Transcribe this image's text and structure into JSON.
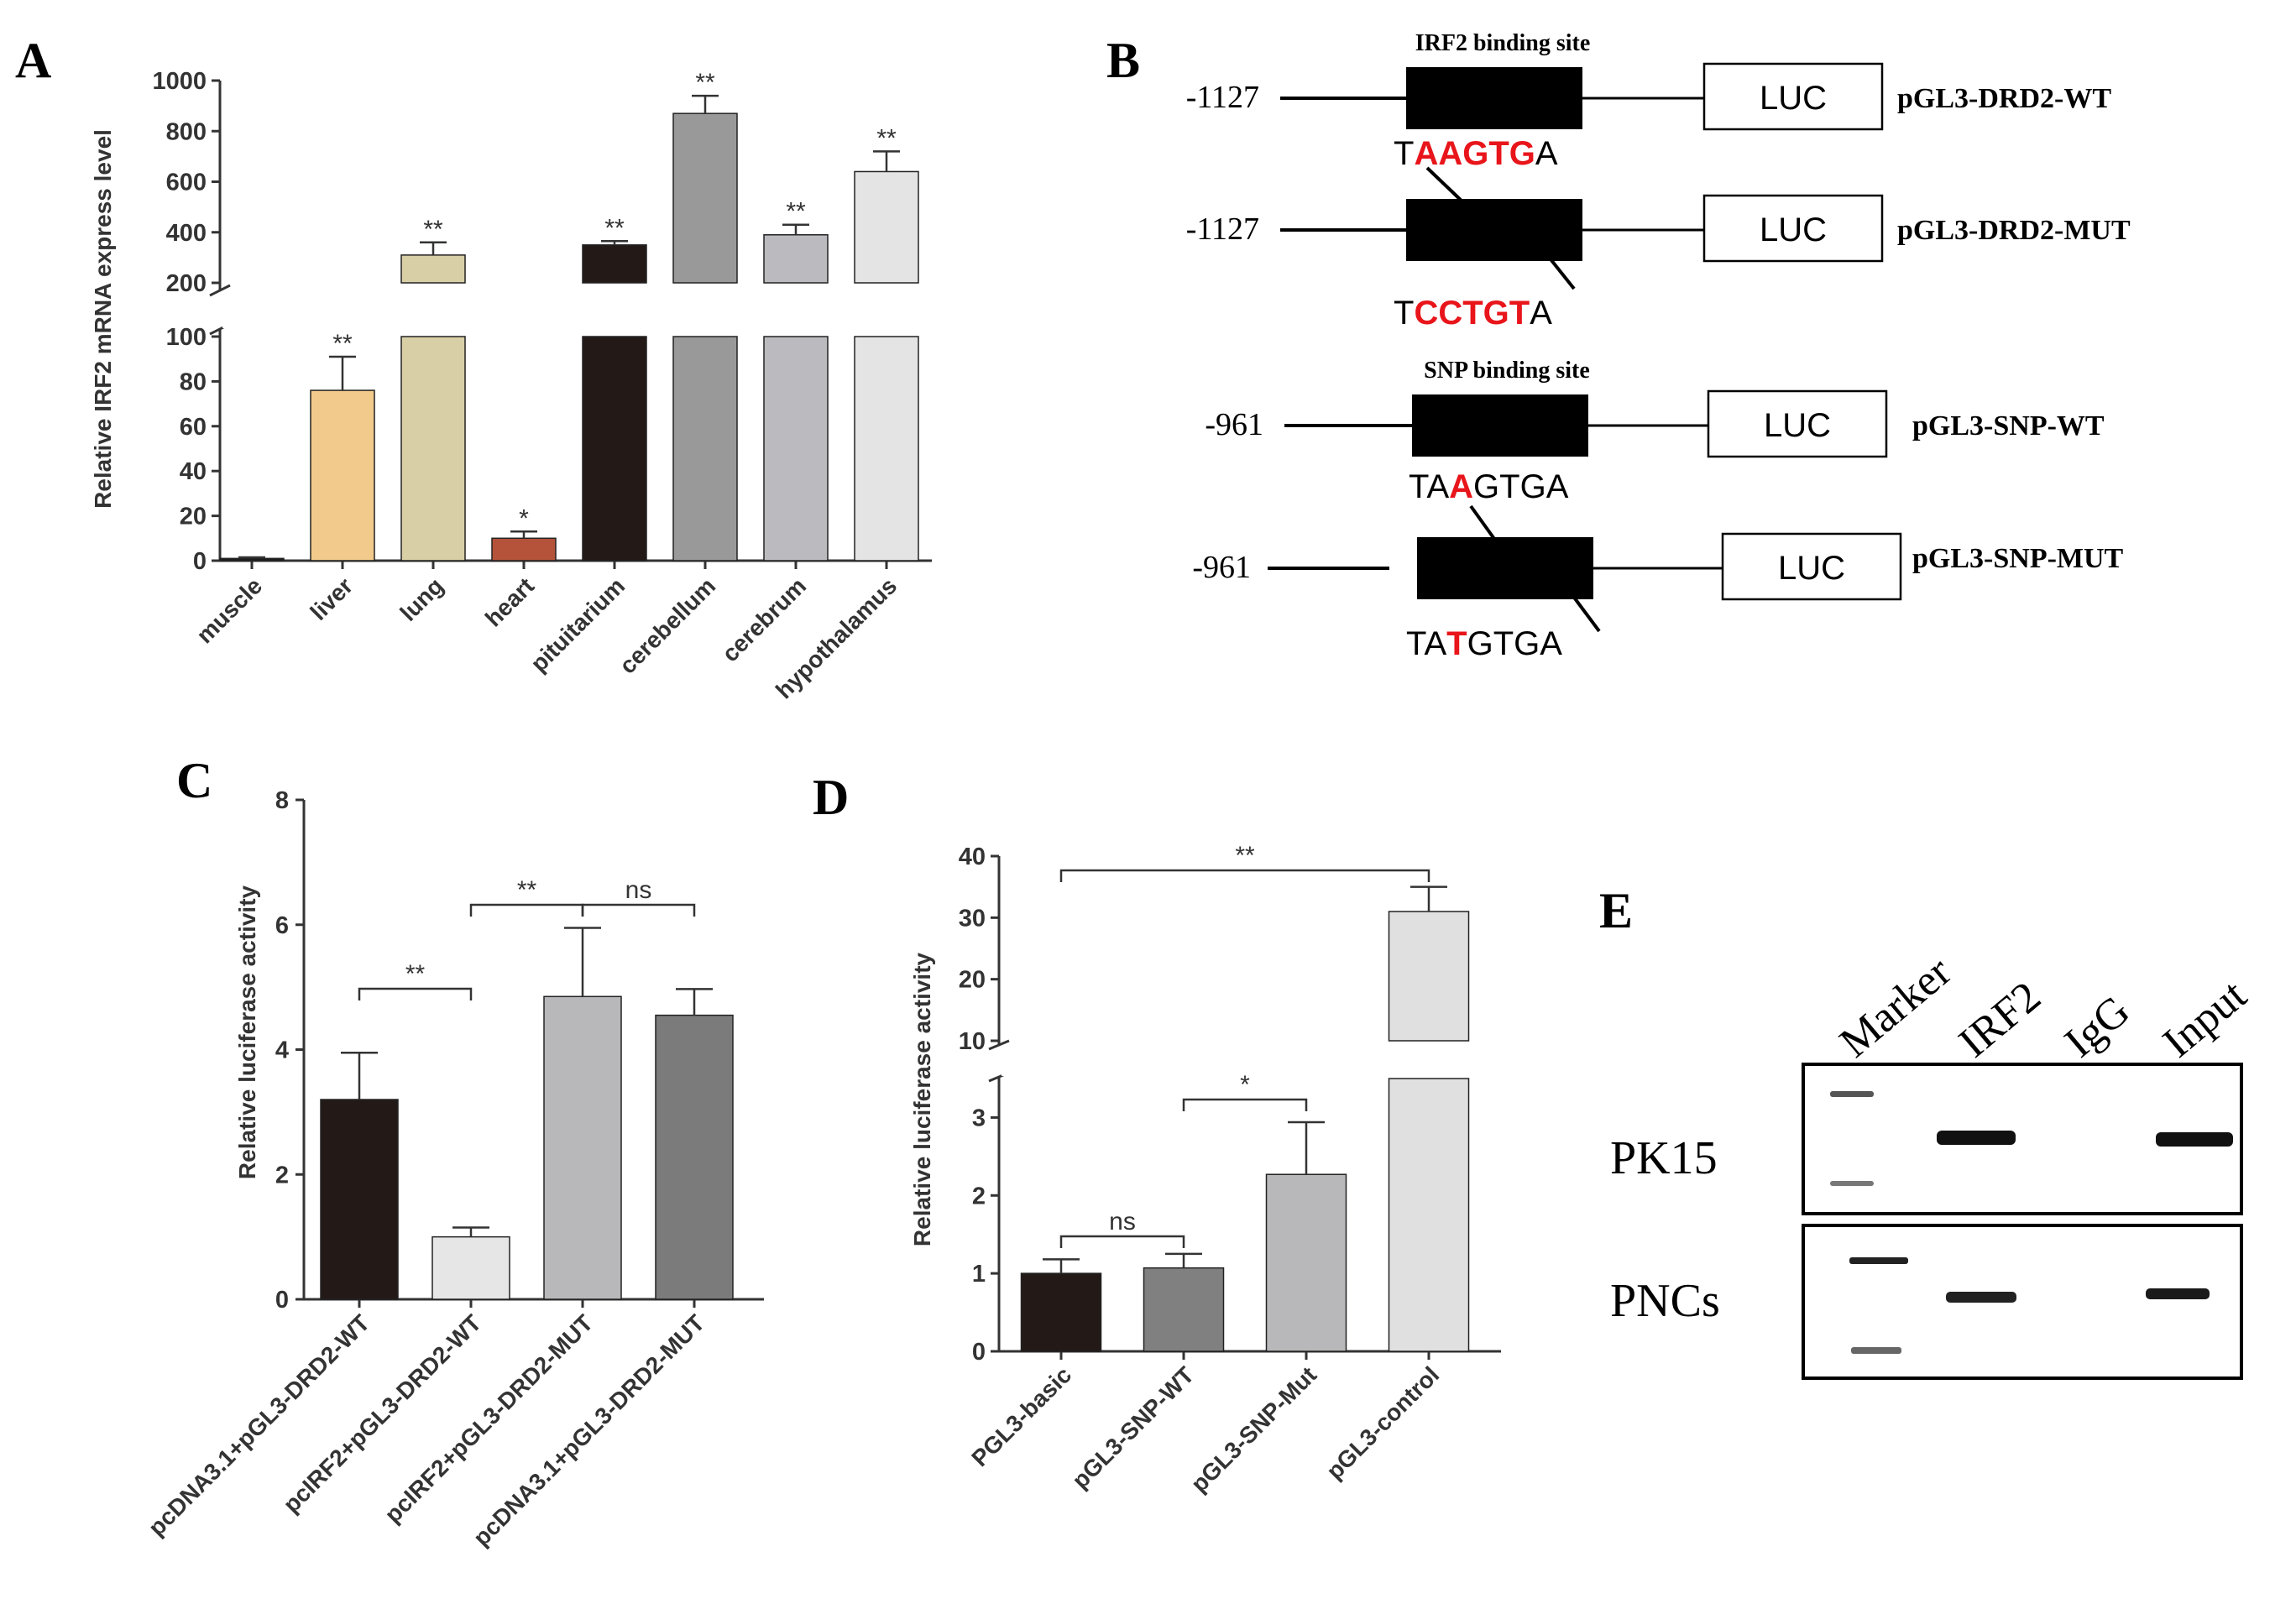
{
  "panels": {
    "a": "A",
    "b": "B",
    "c": "C",
    "d": "D",
    "e": "E"
  },
  "chart_data": [
    {
      "id": "A",
      "type": "bar",
      "ylabel": "Relative IRF2 mRNA express level",
      "broken_axis": true,
      "lower_range": [
        0,
        100
      ],
      "upper_range": [
        200,
        1000
      ],
      "lower_ticks": [
        "0",
        "20",
        "40",
        "60",
        "80",
        "100"
      ],
      "upper_ticks": [
        "200",
        "400",
        "600",
        "800",
        "1000"
      ],
      "categories": [
        "muscle",
        "liver",
        "lung",
        "heart",
        "pituitarium",
        "cerebellum",
        "cerebrum",
        "hypothalamus"
      ],
      "values": [
        1,
        76,
        310,
        10,
        350,
        870,
        390,
        640
      ],
      "errors": [
        0.5,
        15,
        50,
        3,
        15,
        70,
        40,
        80
      ],
      "significance": [
        "",
        "**",
        "**",
        "*",
        "**",
        "**",
        "**",
        "**"
      ],
      "colors": [
        "#1c1c1c",
        "#f2cb8c",
        "#d8cfa6",
        "#b5533a",
        "#231a18",
        "#999999",
        "#bbbbbf",
        "#e4e4e4"
      ]
    },
    {
      "id": "C",
      "type": "bar",
      "ylabel": "Relative luciferase activity",
      "ylim": [
        0,
        8
      ],
      "ticks": [
        "0",
        "2",
        "4",
        "6",
        "8"
      ],
      "categories": [
        "pcDNA3.1+pGL3-DRD2-WT",
        "pcIRF2+pGL3-DRD2-WT",
        "pcIRF2+pGL3-DRD2-MUT",
        "pcDNA3.1+pGL3-DRD2-MUT"
      ],
      "values": [
        3.2,
        1.0,
        4.85,
        4.55
      ],
      "errors": [
        0.75,
        0.15,
        1.1,
        0.42
      ],
      "colors": [
        "#231a18",
        "#e6e6e6",
        "#b8b8bb",
        "#7b7b7b"
      ],
      "comparisons": [
        {
          "from": 0,
          "to": 1,
          "label": "**"
        },
        {
          "from": 1,
          "to": 2,
          "label": "**"
        },
        {
          "from": 2,
          "to": 3,
          "label": "ns"
        }
      ]
    },
    {
      "id": "D",
      "type": "bar",
      "ylabel": "Relative luciferase activity",
      "broken_axis": true,
      "lower_range": [
        0,
        3.5
      ],
      "upper_range": [
        10,
        40
      ],
      "lower_ticks": [
        "0",
        "1",
        "2",
        "3"
      ],
      "upper_ticks": [
        "10",
        "20",
        "30",
        "40"
      ],
      "categories": [
        "PGL3-basic",
        "pGL3-SNP-WT",
        "pGL3-SNP-Mut",
        "pGL3-control"
      ],
      "values": [
        1.0,
        1.07,
        2.27,
        31
      ],
      "errors": [
        0.18,
        0.18,
        0.67,
        4
      ],
      "colors": [
        "#231a18",
        "#808080",
        "#b8b8bb",
        "#e0e0e0"
      ],
      "comparisons": [
        {
          "from": 0,
          "to": 1,
          "label": "ns"
        },
        {
          "from": 1,
          "to": 2,
          "label": "*"
        },
        {
          "from": 0,
          "to": 3,
          "label": "**"
        }
      ]
    }
  ],
  "diagram_b": {
    "irf2_site_label": "IRF2 binding site",
    "snp_site_label": "SNP binding site",
    "constructs": [
      {
        "position": "-1127",
        "luc": "LUC",
        "name": "pGL3-DRD2-WT",
        "seq_prefix": "T",
        "seq_highlight": "AAGTG",
        "seq_suffix": "A"
      },
      {
        "position": "-1127",
        "luc": "LUC",
        "name": "pGL3-DRD2-MUT",
        "seq_prefix": "T",
        "seq_highlight": "CCTGT",
        "seq_suffix": "A"
      },
      {
        "position": "-961",
        "luc": "LUC",
        "name": "pGL3-SNP-WT",
        "seq_prefix": "TA",
        "seq_highlight": "A",
        "seq_suffix": "GTGA"
      },
      {
        "position": "-961",
        "luc": "LUC",
        "name": "pGL3-SNP-MUT",
        "seq_prefix": "TA",
        "seq_highlight": "T",
        "seq_suffix": "GTGA"
      }
    ],
    "highlight_color": "#e8151b"
  },
  "gel_e": {
    "lanes": [
      "Marker",
      "IRF2",
      "IgG",
      "Input"
    ],
    "rows": [
      "PK15",
      "PNCs"
    ]
  }
}
